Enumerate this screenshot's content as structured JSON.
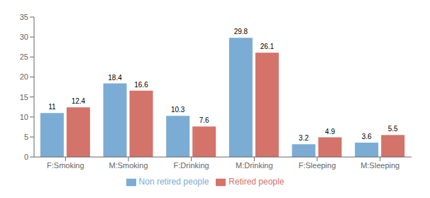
{
  "chart_data": {
    "type": "bar",
    "categories": [
      "F:Smoking",
      "M:Smoking",
      "F:Drinking",
      "M:Drinking",
      "F:Sleeping",
      "M:Sleeping"
    ],
    "series": [
      {
        "name": "Non retired people",
        "color": "#7BACD4",
        "values": [
          11,
          18.4,
          10.3,
          29.8,
          3.2,
          3.6
        ]
      },
      {
        "name": "Retired people",
        "color": "#D4736A",
        "values": [
          12.4,
          16.6,
          7.6,
          26.1,
          4.9,
          5.5
        ]
      }
    ],
    "ylim": [
      0,
      35
    ],
    "yticks": [
      0,
      5,
      10,
      15,
      20,
      25,
      30,
      35
    ],
    "grid": false,
    "legend": "bottom",
    "data_labels": true
  }
}
